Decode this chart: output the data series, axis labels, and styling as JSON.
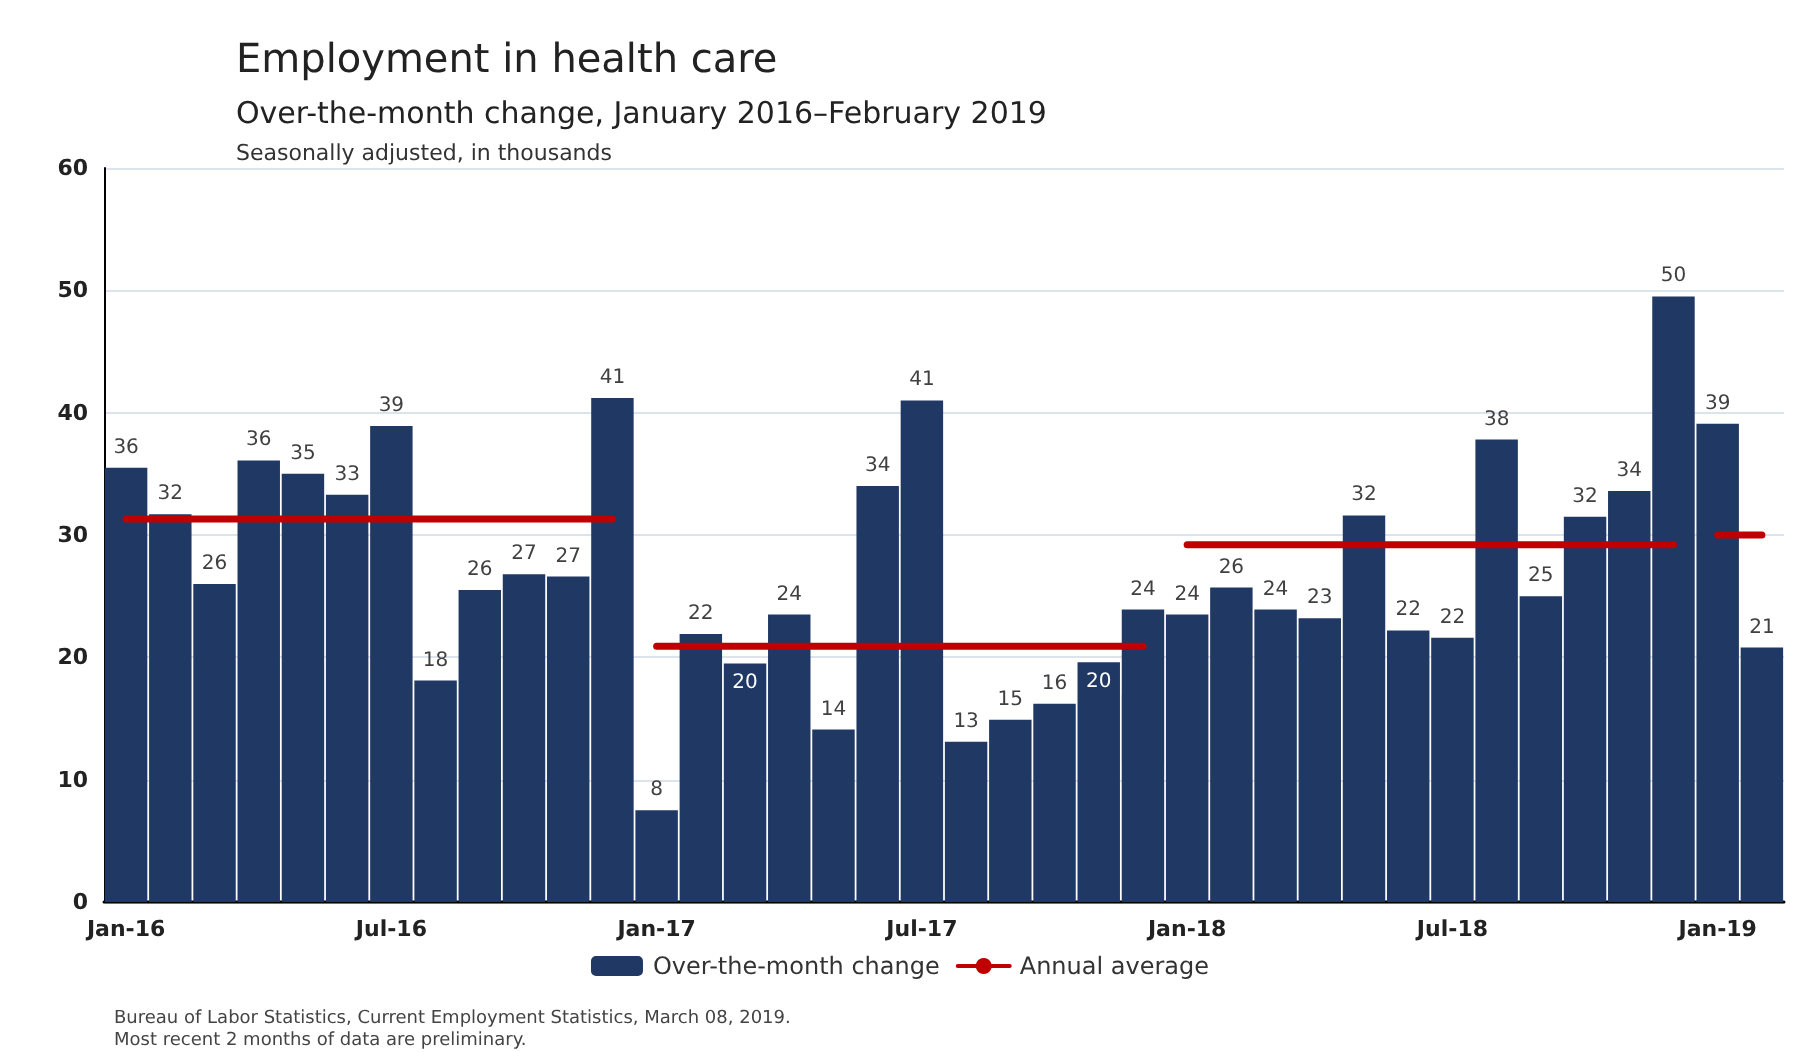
{
  "chart_data": {
    "type": "bar",
    "title": "Employment in health care",
    "subtitle": "Over-the-month change, January 2016–February 2019",
    "ylabel": "Seasonally adjusted, in thousands",
    "categories": [
      "Jan-16",
      null,
      null,
      null,
      null,
      null,
      "Jul-16",
      null,
      null,
      null,
      null,
      null,
      "Jan-17",
      null,
      null,
      null,
      null,
      null,
      "Jul-17",
      null,
      null,
      null,
      null,
      null,
      "Jan-18",
      null,
      null,
      null,
      null,
      null,
      "Jul-18",
      null,
      null,
      null,
      null,
      null,
      "Jan-19",
      null
    ],
    "series": [
      {
        "name": "Over-the-month change",
        "color": "#1f3864",
        "values": [
          35.5,
          31.7,
          26.0,
          36.1,
          35.0,
          33.3,
          38.9,
          18.1,
          25.5,
          26.8,
          26.6,
          41.2,
          7.5,
          21.9,
          19.5,
          23.5,
          14.1,
          34.0,
          41.0,
          13.1,
          14.9,
          16.2,
          19.6,
          23.9,
          23.5,
          25.7,
          23.9,
          23.2,
          31.6,
          22.2,
          21.6,
          37.8,
          25.0,
          31.5,
          33.6,
          49.5,
          39.1,
          20.8
        ],
        "value_labels": [
          "36",
          "32",
          "26",
          "36",
          "35",
          "33",
          "39",
          "18",
          "26",
          "27",
          "27",
          "41",
          "8",
          "22",
          "20",
          "24",
          "14",
          "34",
          "41",
          "13",
          "15",
          "16",
          "20",
          "24",
          "24",
          "26",
          "24",
          "23",
          "32",
          "22",
          "22",
          "38",
          "25",
          "32",
          "34",
          "50",
          "39",
          "21"
        ]
      },
      {
        "name": "Annual average",
        "type": "line",
        "color": "#c00000",
        "values": [
          31.3,
          31.3,
          31.3,
          31.3,
          31.3,
          31.3,
          31.3,
          31.3,
          31.3,
          31.3,
          31.3,
          31.3,
          20.9,
          20.9,
          20.9,
          20.9,
          20.9,
          20.9,
          20.9,
          20.9,
          20.9,
          20.9,
          20.9,
          20.9,
          29.2,
          29.2,
          29.2,
          29.2,
          29.2,
          29.2,
          29.2,
          29.2,
          29.2,
          29.2,
          29.2,
          29.2,
          30.0,
          30.0
        ]
      }
    ],
    "ylim": [
      0,
      60
    ],
    "yticks": [
      0,
      10,
      20,
      30,
      40,
      50,
      60
    ],
    "grid": "y",
    "legend": "bottom",
    "marker": "none",
    "line_style": "solid",
    "annotations": [
      "Bureau of Labor Statistics, Current Employment Statistics, March 08, 2019.",
      "Most recent 2 months of data are preliminary."
    ]
  }
}
